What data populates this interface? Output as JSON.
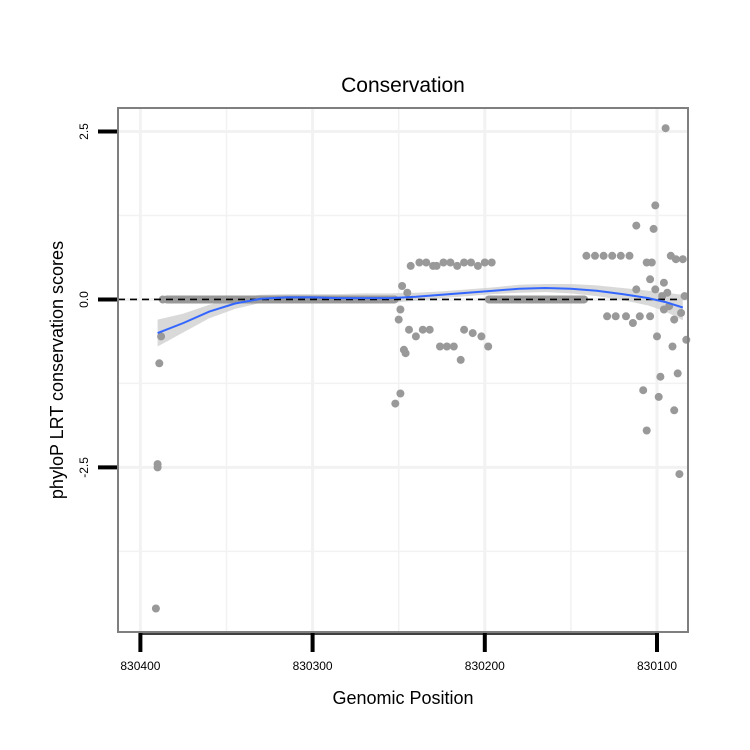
{
  "chart_data": {
    "type": "scatter",
    "title": "Conservation",
    "xlabel": "Genomic Position",
    "ylabel": "phyloP LRT conservation scores",
    "x_axis_reversed": true,
    "xlim": [
      830413,
      830082
    ],
    "ylim": [
      -4.95,
      2.85
    ],
    "x_ticks": [
      830400,
      830300,
      830200,
      830100
    ],
    "x_tick_labels": [
      "830400",
      "830300",
      "830200",
      "830100"
    ],
    "y_ticks": [
      2.5,
      0.0,
      -2.5
    ],
    "y_tick_labels": [
      "2.5",
      "0.0",
      "-2.5"
    ],
    "reference_line": {
      "y": 0,
      "style": "dashed",
      "color": "#000000"
    },
    "grid": true,
    "colors": {
      "points": "#999999",
      "smooth": "#3366ff",
      "band": "#cccccc",
      "panel_border": "#7f7f7f",
      "grid": "#f2f2f2"
    },
    "points": [
      {
        "x": 830391,
        "y": -4.6
      },
      {
        "x": 830390,
        "y": -2.5
      },
      {
        "x": 830390,
        "y": -2.45
      },
      {
        "x": 830389,
        "y": -0.95
      },
      {
        "x": 830388,
        "y": -0.55
      },
      {
        "x": 830387,
        "y": 0.0
      },
      {
        "x": 830252,
        "y": -1.55
      },
      {
        "x": 830250,
        "y": -0.3
      },
      {
        "x": 830249,
        "y": -0.15
      },
      {
        "x": 830249,
        "y": -1.4
      },
      {
        "x": 830248,
        "y": 0.2
      },
      {
        "x": 830247,
        "y": -0.75
      },
      {
        "x": 830246,
        "y": -0.8
      },
      {
        "x": 830245,
        "y": 0.1
      },
      {
        "x": 830244,
        "y": -0.45
      },
      {
        "x": 830243,
        "y": 0.5
      },
      {
        "x": 830240,
        "y": -0.55
      },
      {
        "x": 830238,
        "y": 0.55
      },
      {
        "x": 830236,
        "y": -0.45
      },
      {
        "x": 830234,
        "y": 0.55
      },
      {
        "x": 830232,
        "y": -0.45
      },
      {
        "x": 830230,
        "y": 0.5
      },
      {
        "x": 830228,
        "y": 0.5
      },
      {
        "x": 830226,
        "y": -0.7
      },
      {
        "x": 830224,
        "y": 0.55
      },
      {
        "x": 830222,
        "y": -0.7
      },
      {
        "x": 830220,
        "y": 0.55
      },
      {
        "x": 830218,
        "y": -0.7
      },
      {
        "x": 830216,
        "y": 0.5
      },
      {
        "x": 830214,
        "y": -0.9
      },
      {
        "x": 830212,
        "y": -0.45
      },
      {
        "x": 830212,
        "y": 0.55
      },
      {
        "x": 830208,
        "y": 0.55
      },
      {
        "x": 830207,
        "y": -0.5
      },
      {
        "x": 830204,
        "y": 0.5
      },
      {
        "x": 830202,
        "y": -0.55
      },
      {
        "x": 830200,
        "y": 0.55
      },
      {
        "x": 830198,
        "y": -0.7
      },
      {
        "x": 830196,
        "y": 0.55
      },
      {
        "x": 830141,
        "y": 0.65
      },
      {
        "x": 830136,
        "y": 0.65
      },
      {
        "x": 830131,
        "y": 0.65
      },
      {
        "x": 830129,
        "y": -0.25
      },
      {
        "x": 830126,
        "y": 0.65
      },
      {
        "x": 830124,
        "y": -0.25
      },
      {
        "x": 830121,
        "y": 0.65
      },
      {
        "x": 830118,
        "y": -0.25
      },
      {
        "x": 830116,
        "y": 0.65
      },
      {
        "x": 830114,
        "y": -0.35
      },
      {
        "x": 830112,
        "y": 1.1
      },
      {
        "x": 830112,
        "y": 0.15
      },
      {
        "x": 830110,
        "y": -0.25
      },
      {
        "x": 830108,
        "y": -1.35
      },
      {
        "x": 830106,
        "y": -1.95
      },
      {
        "x": 830106,
        "y": 0.55
      },
      {
        "x": 830104,
        "y": 0.3
      },
      {
        "x": 830104,
        "y": -0.25
      },
      {
        "x": 830103,
        "y": 0.55
      },
      {
        "x": 830102,
        "y": 1.05
      },
      {
        "x": 830101,
        "y": 1.4
      },
      {
        "x": 830101,
        "y": 0.15
      },
      {
        "x": 830100,
        "y": -0.55
      },
      {
        "x": 830099,
        "y": -1.45
      },
      {
        "x": 830098,
        "y": -1.15
      },
      {
        "x": 830097,
        "y": 0.05
      },
      {
        "x": 830096,
        "y": 0.25
      },
      {
        "x": 830096,
        "y": -0.15
      },
      {
        "x": 830095,
        "y": 2.55
      },
      {
        "x": 830094,
        "y": 0.1
      },
      {
        "x": 830093,
        "y": -0.1
      },
      {
        "x": 830092,
        "y": 0.65
      },
      {
        "x": 830091,
        "y": -0.7
      },
      {
        "x": 830090,
        "y": -1.65
      },
      {
        "x": 830090,
        "y": -0.3
      },
      {
        "x": 830089,
        "y": 0.6
      },
      {
        "x": 830088,
        "y": -1.1
      },
      {
        "x": 830087,
        "y": -2.6
      },
      {
        "x": 830086,
        "y": -0.2
      },
      {
        "x": 830085,
        "y": 0.6
      },
      {
        "x": 830084,
        "y": 0.05
      },
      {
        "x": 830083,
        "y": -0.6
      }
    ],
    "zero_runs": [
      {
        "x_start": 830387,
        "x_end": 830250
      },
      {
        "x_start": 830200,
        "x_end": 830140
      }
    ],
    "smooth_line": [
      {
        "x": 830390,
        "y": -0.5
      },
      {
        "x": 830375,
        "y": -0.35
      },
      {
        "x": 830360,
        "y": -0.18
      },
      {
        "x": 830345,
        "y": -0.06
      },
      {
        "x": 830330,
        "y": 0.01
      },
      {
        "x": 830315,
        "y": 0.03
      },
      {
        "x": 830300,
        "y": 0.03
      },
      {
        "x": 830285,
        "y": 0.02
      },
      {
        "x": 830270,
        "y": 0.02
      },
      {
        "x": 830255,
        "y": 0.02
      },
      {
        "x": 830240,
        "y": 0.04
      },
      {
        "x": 830225,
        "y": 0.07
      },
      {
        "x": 830210,
        "y": 0.1
      },
      {
        "x": 830195,
        "y": 0.13
      },
      {
        "x": 830180,
        "y": 0.16
      },
      {
        "x": 830165,
        "y": 0.17
      },
      {
        "x": 830150,
        "y": 0.16
      },
      {
        "x": 830135,
        "y": 0.13
      },
      {
        "x": 830120,
        "y": 0.08
      },
      {
        "x": 830105,
        "y": 0.02
      },
      {
        "x": 830095,
        "y": -0.04
      },
      {
        "x": 830085,
        "y": -0.12
      }
    ],
    "confidence_band_halfwidth": [
      {
        "x": 830390,
        "w": 0.2
      },
      {
        "x": 830375,
        "w": 0.14
      },
      {
        "x": 830360,
        "w": 0.1
      },
      {
        "x": 830345,
        "w": 0.08
      },
      {
        "x": 830330,
        "w": 0.06
      },
      {
        "x": 830315,
        "w": 0.05
      },
      {
        "x": 830300,
        "w": 0.05
      },
      {
        "x": 830285,
        "w": 0.06
      },
      {
        "x": 830270,
        "w": 0.07
      },
      {
        "x": 830255,
        "w": 0.07
      },
      {
        "x": 830240,
        "w": 0.06
      },
      {
        "x": 830225,
        "w": 0.05
      },
      {
        "x": 830210,
        "w": 0.05
      },
      {
        "x": 830195,
        "w": 0.05
      },
      {
        "x": 830180,
        "w": 0.06
      },
      {
        "x": 830165,
        "w": 0.06
      },
      {
        "x": 830150,
        "w": 0.07
      },
      {
        "x": 830135,
        "w": 0.08
      },
      {
        "x": 830120,
        "w": 0.09
      },
      {
        "x": 830105,
        "w": 0.11
      },
      {
        "x": 830095,
        "w": 0.14
      },
      {
        "x": 830085,
        "w": 0.19
      }
    ]
  }
}
